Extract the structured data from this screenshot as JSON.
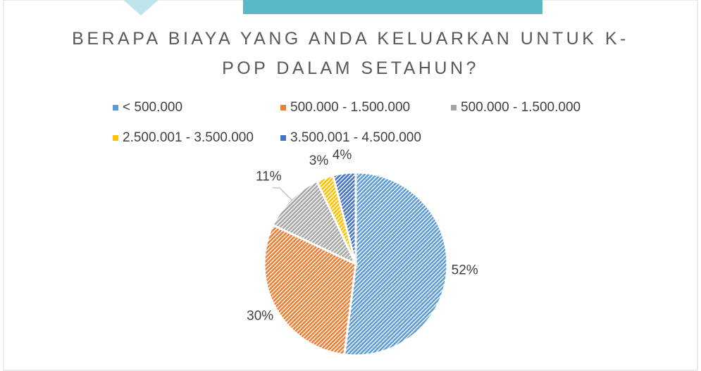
{
  "chart_data": {
    "type": "pie",
    "title": "BERAPA BIAYA YANG ANDA KELUARKAN UNTUK K-POP DALAM SETAHUN?",
    "categories": [
      "< 500.000",
      "500.000 - 1.500.000",
      "500.000 - 1.500.000",
      "2.500.001 - 3.500.000",
      "3.500.001 - 4.500.000"
    ],
    "values": [
      52,
      30,
      11,
      3,
      4
    ],
    "value_labels": [
      "52%",
      "30%",
      "11%",
      "3%",
      "4%"
    ],
    "colors": [
      "#5b9bd5",
      "#ed7d31",
      "#a5a5a5",
      "#ffc000",
      "#4472c4"
    ],
    "legend": "top"
  }
}
